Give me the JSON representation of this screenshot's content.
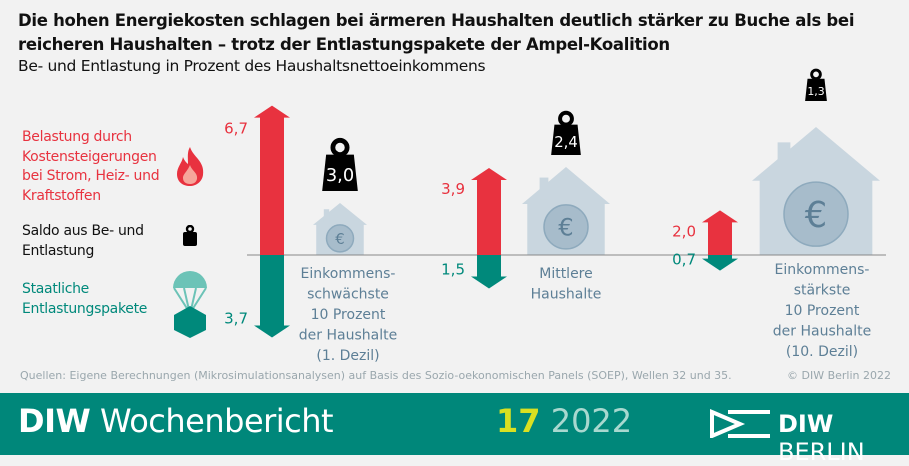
{
  "title": "Die hohen Energiekosten schlagen bei ärmeren Haushalten deutlich stärker zu Buche als bei reicheren Haushalten – trotz der Entlastungspakete der Ampel-Koalition",
  "subtitle": "Be- und Entlastung in Prozent des Haushaltsnettoeinkommens",
  "legend": [
    {
      "label": "Belastung durch Kostensteigerungen bei Strom, Heiz- und Kraftstoffen",
      "icon": "fire-icon",
      "color": "#e8323f"
    },
    {
      "label": "Saldo aus Be- und Entlastung",
      "icon": "weight-icon",
      "color": "#111111"
    },
    {
      "label": "Staatliche Entlastungspakete",
      "icon": "parachute-package-icon",
      "color": "#00897b"
    }
  ],
  "chart_data": {
    "type": "bar",
    "categories": [
      "Einkommens-schwächste 10 Prozent der Haushalte (1. Dezil)",
      "Mittlere Haushalte",
      "Einkommens-stärkste 10 Prozent der Haushalte (10. Dezil)"
    ],
    "series": [
      {
        "name": "Belastung durch Kostensteigerungen bei Strom, Heiz- und Kraftstoffen",
        "values": [
          6.7,
          3.9,
          2.0
        ],
        "labels": [
          "6,7",
          "3,9",
          "2,0"
        ],
        "color": "#e8323f"
      },
      {
        "name": "Staatliche Entlastungspakete",
        "values": [
          3.7,
          1.5,
          0.7
        ],
        "labels": [
          "3,7",
          "1,5",
          "0,7"
        ],
        "color": "#00897b"
      },
      {
        "name": "Saldo aus Be- und Entlastung",
        "values": [
          3.0,
          2.4,
          1.3
        ],
        "labels": [
          "3,0",
          "2,4",
          "1,3"
        ],
        "color": "#111111"
      }
    ],
    "group_lines": [
      [
        "Einkommens-",
        "schwächste",
        "10 Prozent",
        "der Haushalte",
        "(1. Dezil)"
      ],
      [
        "Mittlere",
        "Haushalte"
      ],
      [
        "Einkommens-",
        "stärkste",
        "10 Prozent",
        "der Haushalte",
        "(10. Dezil)"
      ]
    ]
  },
  "source": "Quellen: Eigene Berechnungen (Mikrosimulationsanalysen) auf Basis des Sozio-oekonomischen Panels (SOEP), Wellen 32 und 35.",
  "copyright": "© DIW Berlin 2022",
  "footer": {
    "brand_bold": "DIW",
    "brand_rest": " Wochenbericht",
    "issue_num": "17",
    "issue_year": " 2022",
    "logo_bold": "DIW",
    "logo_rest": " BERLIN"
  }
}
